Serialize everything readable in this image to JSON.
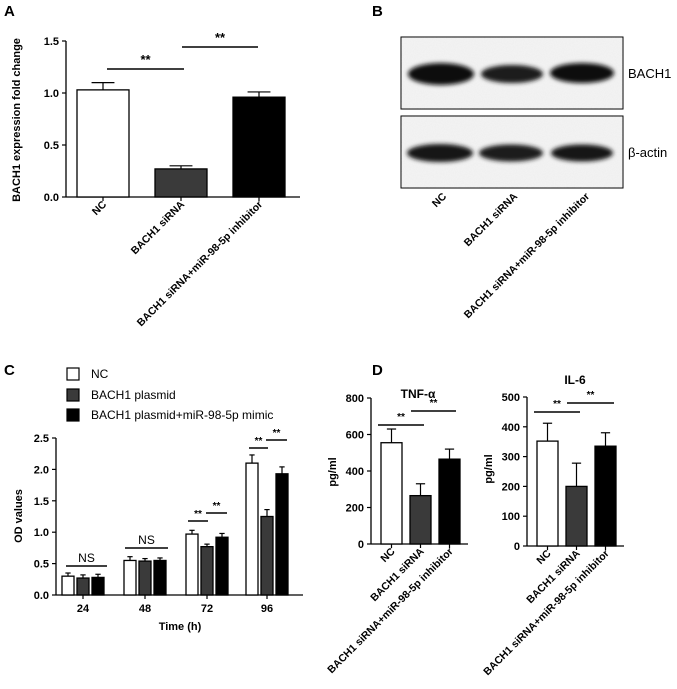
{
  "panels": {
    "A": {
      "letter": "A"
    },
    "B": {
      "letter": "B"
    },
    "C": {
      "letter": "C"
    },
    "D": {
      "letter": "D"
    }
  },
  "chart_data": [
    {
      "id": "A",
      "type": "bar",
      "title": "",
      "xlabel": "",
      "ylabel": "BACH1 expression fold change",
      "ylim": [
        0,
        1.5
      ],
      "yticks": [
        "0.0",
        "0.5",
        "1.0",
        "1.5"
      ],
      "categories": [
        "NC",
        "BACH1 siRNA",
        "BACH1 siRNA+miR-98-5p inhibitor"
      ],
      "values": [
        1.03,
        0.27,
        0.96
      ],
      "errors": [
        0.07,
        0.03,
        0.05
      ],
      "colors": [
        "#ffffff",
        "#3a3a3a",
        "#000000"
      ],
      "significance": [
        "**",
        "**"
      ]
    },
    {
      "id": "C",
      "type": "bar",
      "title": "",
      "xlabel": "Time (h)",
      "ylabel": "OD values",
      "ylim": [
        0,
        2.5
      ],
      "yticks": [
        "0.0",
        "0.5",
        "1.0",
        "1.5",
        "2.0",
        "2.5"
      ],
      "categories": [
        "24",
        "48",
        "72",
        "96"
      ],
      "series": [
        {
          "name": "NC",
          "color": "#ffffff",
          "values": [
            0.3,
            0.55,
            0.97,
            2.1
          ],
          "errors": [
            0.05,
            0.06,
            0.06,
            0.13
          ]
        },
        {
          "name": "BACH1 plasmid",
          "color": "#3a3a3a",
          "values": [
            0.27,
            0.54,
            0.77,
            1.25
          ],
          "errors": [
            0.05,
            0.04,
            0.04,
            0.11
          ]
        },
        {
          "name": "BACH1 plasmid+miR-98-5p mimic",
          "color": "#000000",
          "values": [
            0.28,
            0.55,
            0.92,
            1.93
          ],
          "errors": [
            0.05,
            0.04,
            0.06,
            0.11
          ]
        }
      ],
      "annotations": [
        "NS",
        "NS",
        "**",
        "**",
        "**",
        "**"
      ],
      "legend_position": "top-left"
    },
    {
      "id": "D1",
      "type": "bar",
      "title": "TNF-α",
      "xlabel": "",
      "ylabel": "pg/ml",
      "ylim": [
        0,
        800
      ],
      "yticks": [
        "0",
        "200",
        "400",
        "600",
        "800"
      ],
      "categories": [
        "NC",
        "BACH1 siRNA",
        "BACH1 siRNA+miR-98-5p inhibitor"
      ],
      "values": [
        555,
        265,
        465
      ],
      "errors": [
        75,
        65,
        55
      ],
      "colors": [
        "#ffffff",
        "#3a3a3a",
        "#000000"
      ],
      "significance": [
        "**",
        "**"
      ]
    },
    {
      "id": "D2",
      "type": "bar",
      "title": "IL-6",
      "xlabel": "",
      "ylabel": "pg/ml",
      "ylim": [
        0,
        500
      ],
      "yticks": [
        "0",
        "100",
        "200",
        "300",
        "400",
        "500"
      ],
      "categories": [
        "NC",
        "BACH1 siRNA",
        "BACH1 siRNA+miR-98-5p inhibitor"
      ],
      "values": [
        352,
        200,
        335
      ],
      "errors": [
        60,
        78,
        45
      ],
      "colors": [
        "#ffffff",
        "#3a3a3a",
        "#000000"
      ],
      "significance": [
        "**",
        "**"
      ]
    }
  ],
  "blot": {
    "bands": [
      "BACH1",
      "β-actin"
    ],
    "lanes": [
      "NC",
      "BACH1 siRNA",
      "BACH1 siRNA+miR-98-5p inhibitor"
    ]
  }
}
